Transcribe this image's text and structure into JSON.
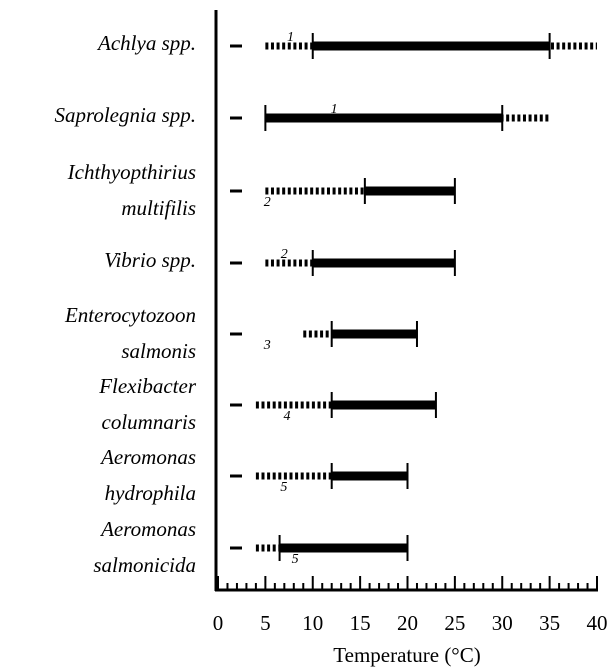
{
  "chart_data": {
    "type": "range",
    "xlabel": "Temperature (°C)",
    "xlim": [
      0,
      40
    ],
    "xticks": [
      0,
      5,
      10,
      15,
      20,
      25,
      30,
      35,
      40
    ],
    "categories": [
      {
        "lines": [
          "Achlya spp."
        ],
        "sup": "1"
      },
      {
        "lines": [
          "Saprolegnia spp."
        ],
        "sup": "1"
      },
      {
        "lines": [
          "Ichthyopthirius",
          "multifilis"
        ],
        "sup": "2"
      },
      {
        "lines": [
          "Vibrio spp."
        ],
        "sup": "2"
      },
      {
        "lines": [
          "Enterocytozoon",
          "salmonis"
        ],
        "sup": "3"
      },
      {
        "lines": [
          "Flexibacter",
          "columnaris"
        ],
        "sup": "4"
      },
      {
        "lines": [
          "Aeromonas",
          "hydrophila"
        ],
        "sup": "5"
      },
      {
        "lines": [
          "Aeromonas",
          "salmonicida"
        ],
        "sup": "5"
      }
    ],
    "ranges": [
      [
        10,
        35
      ],
      [
        5,
        30
      ],
      [
        15.5,
        25
      ],
      [
        10,
        25
      ],
      [
        12,
        21
      ],
      [
        12,
        23
      ],
      [
        12,
        20
      ],
      [
        6.5,
        20
      ]
    ],
    "extended": [
      [
        5,
        40
      ],
      [
        5,
        35
      ],
      [
        5,
        25
      ],
      [
        5,
        25
      ],
      [
        9,
        21
      ],
      [
        4,
        23
      ],
      [
        4,
        20
      ],
      [
        4,
        20
      ]
    ],
    "color": "#000000"
  }
}
